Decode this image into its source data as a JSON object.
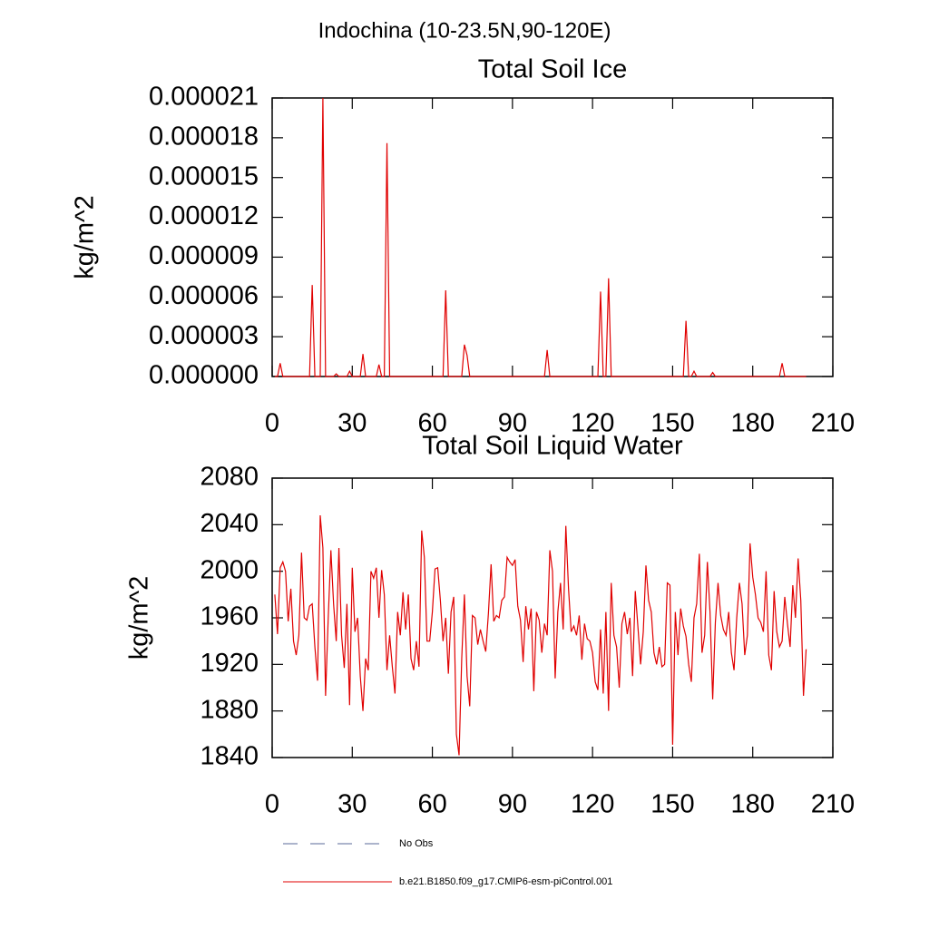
{
  "title": "Indochina (10-23.5N,90-120E)",
  "legend": [
    {
      "name": "No Obs",
      "color": "#5a6a9a",
      "dash": true
    }
  ],
  "chart_data": [
    {
      "type": "line",
      "title": "Total Soil Ice",
      "ylabel": "kg/m^2",
      "xlim": [
        0,
        210
      ],
      "xticks": [
        0,
        30,
        60,
        90,
        120,
        150,
        180,
        210
      ],
      "ylim": [
        0,
        2.1e-05
      ],
      "yticks": [
        {
          "value": 0,
          "label": "0.000000"
        },
        {
          "value": 3e-06,
          "label": "0.000003"
        },
        {
          "value": 6e-06,
          "label": "0.000006"
        },
        {
          "value": 9e-06,
          "label": "0.000009"
        },
        {
          "value": 1.2e-05,
          "label": "0.000012"
        },
        {
          "value": 1.5e-05,
          "label": "0.000015"
        },
        {
          "value": 1.8e-05,
          "label": "0.000018"
        },
        {
          "value": 2.1e-05,
          "label": "0.000021"
        }
      ],
      "x": [
        1,
        2,
        3,
        4,
        5,
        6,
        7,
        8,
        9,
        10,
        11,
        12,
        13,
        14,
        15,
        16,
        17,
        18,
        19,
        20,
        21,
        22,
        23,
        24,
        25,
        26,
        27,
        28,
        29,
        30,
        31,
        32,
        33,
        34,
        35,
        36,
        37,
        38,
        39,
        40,
        41,
        42,
        43,
        44,
        45,
        46,
        47,
        48,
        49,
        50,
        51,
        52,
        53,
        54,
        55,
        56,
        57,
        58,
        59,
        60,
        61,
        62,
        63,
        64,
        65,
        66,
        67,
        68,
        69,
        70,
        71,
        72,
        73,
        74,
        75,
        76,
        77,
        78,
        79,
        80,
        81,
        82,
        83,
        84,
        85,
        86,
        87,
        88,
        89,
        90,
        91,
        92,
        93,
        94,
        95,
        96,
        97,
        98,
        99,
        100,
        101,
        102,
        103,
        104,
        105,
        106,
        107,
        108,
        109,
        110,
        111,
        112,
        113,
        114,
        115,
        116,
        117,
        118,
        119,
        120,
        121,
        122,
        123,
        124,
        125,
        126,
        127,
        128,
        129,
        130,
        131,
        132,
        133,
        134,
        135,
        136,
        137,
        138,
        139,
        140,
        141,
        142,
        143,
        144,
        145,
        146,
        147,
        148,
        149,
        150,
        151,
        152,
        153,
        154,
        155,
        156,
        157,
        158,
        159,
        160,
        161,
        162,
        163,
        164,
        165,
        166,
        167,
        168,
        169,
        170,
        171,
        172,
        173,
        174,
        175,
        176,
        177,
        178,
        179,
        180,
        181,
        182,
        183,
        184,
        185,
        186,
        187,
        188,
        189,
        190,
        191,
        192,
        193,
        194,
        195,
        196,
        197,
        198,
        199,
        200
      ],
      "series": [
        {
          "name": "b.e21.B1850.f09_g17.CMIP6-esm-piControl.001",
          "color": "#e00000",
          "values": [
            0,
            0,
            1e-06,
            0,
            0,
            0,
            0,
            0,
            0,
            0,
            0,
            0,
            0,
            0,
            6.9e-06,
            0,
            0,
            0,
            2.1e-05,
            0,
            0,
            0,
            0,
            2e-07,
            0,
            0,
            0,
            0,
            4e-07,
            0,
            0,
            0,
            0,
            1.7e-06,
            0,
            0,
            0,
            0,
            0,
            9e-07,
            0,
            0,
            1.76e-05,
            0,
            0,
            0,
            0,
            0,
            0,
            0,
            0,
            0,
            0,
            0,
            0,
            0,
            0,
            0,
            0,
            0,
            0,
            0,
            0,
            0,
            6.5e-06,
            0,
            0,
            0,
            0,
            0,
            0,
            2.4e-06,
            1.6e-06,
            0,
            0,
            0,
            0,
            0,
            0,
            0,
            0,
            0,
            0,
            0,
            0,
            0,
            0,
            0,
            0,
            0,
            0,
            0,
            0,
            0,
            0,
            0,
            0,
            0,
            0,
            0,
            0,
            0,
            2e-06,
            0,
            0,
            0,
            0,
            0,
            0,
            0,
            0,
            0,
            0,
            0,
            0,
            0,
            0,
            0,
            0,
            0,
            0,
            0,
            6.4e-06,
            0,
            0,
            7.4e-06,
            0,
            0,
            0,
            0,
            0,
            0,
            0,
            0,
            0,
            0,
            0,
            0,
            0,
            0,
            0,
            0,
            0,
            0,
            0,
            0,
            0,
            0,
            0,
            0,
            0,
            0,
            0,
            0,
            4.2e-06,
            0,
            0,
            4e-07,
            0,
            0,
            0,
            0,
            0,
            0,
            3e-07,
            0,
            0,
            0,
            0,
            0,
            0,
            0,
            0,
            0,
            0,
            0,
            0,
            0,
            0,
            0,
            0,
            0,
            0,
            0,
            0,
            0,
            0,
            0,
            0,
            0,
            1e-06,
            0,
            0,
            0,
            0,
            0,
            0,
            0,
            0,
            0
          ]
        }
      ]
    },
    {
      "type": "line",
      "title": "Total Soil Liquid Water",
      "ylabel": "kg/m^2",
      "xlim": [
        0,
        210
      ],
      "xticks": [
        0,
        30,
        60,
        90,
        120,
        150,
        180,
        210
      ],
      "ylim": [
        1840,
        2080
      ],
      "yticks": [
        1840,
        1880,
        1920,
        1960,
        2000,
        2040,
        2080
      ],
      "x": [
        1,
        2,
        3,
        4,
        5,
        6,
        7,
        8,
        9,
        10,
        11,
        12,
        13,
        14,
        15,
        16,
        17,
        18,
        19,
        20,
        21,
        22,
        23,
        24,
        25,
        26,
        27,
        28,
        29,
        30,
        31,
        32,
        33,
        34,
        35,
        36,
        37,
        38,
        39,
        40,
        41,
        42,
        43,
        44,
        45,
        46,
        47,
        48,
        49,
        50,
        51,
        52,
        53,
        54,
        55,
        56,
        57,
        58,
        59,
        60,
        61,
        62,
        63,
        64,
        65,
        66,
        67,
        68,
        69,
        70,
        71,
        72,
        73,
        74,
        75,
        76,
        77,
        78,
        79,
        80,
        81,
        82,
        83,
        84,
        85,
        86,
        87,
        88,
        89,
        90,
        91,
        92,
        93,
        94,
        95,
        96,
        97,
        98,
        99,
        100,
        101,
        102,
        103,
        104,
        105,
        106,
        107,
        108,
        109,
        110,
        111,
        112,
        113,
        114,
        115,
        116,
        117,
        118,
        119,
        120,
        121,
        122,
        123,
        124,
        125,
        126,
        127,
        128,
        129,
        130,
        131,
        132,
        133,
        134,
        135,
        136,
        137,
        138,
        139,
        140,
        141,
        142,
        143,
        144,
        145,
        146,
        147,
        148,
        149,
        150,
        151,
        152,
        153,
        154,
        155,
        156,
        157,
        158,
        159,
        160,
        161,
        162,
        163,
        164,
        165,
        166,
        167,
        168,
        169,
        170,
        171,
        172,
        173,
        174,
        175,
        176,
        177,
        178,
        179,
        180,
        181,
        182,
        183,
        184,
        185,
        186,
        187,
        188,
        189,
        190,
        191,
        192,
        193,
        194,
        195,
        196,
        197,
        198,
        199,
        200
      ],
      "series": [
        {
          "name": "b.e21.B1850.f09_g17.CMIP6-esm-piControl.001",
          "color": "#e00000",
          "values": [
            1980,
            1946,
            2003,
            2008,
            2000,
            1957,
            1985,
            1940,
            1928,
            1945,
            2016,
            1960,
            1958,
            1970,
            1972,
            1935,
            1906,
            2048,
            2020,
            1893,
            1960,
            2018,
            1972,
            1940,
            2020,
            1945,
            1917,
            1972,
            1885,
            2003,
            1948,
            1960,
            1910,
            1880,
            1925,
            1915,
            2000,
            1994,
            2003,
            1960,
            2001,
            1980,
            1915,
            1945,
            1918,
            1895,
            1965,
            1945,
            1982,
            1950,
            1980,
            1925,
            1915,
            1940,
            1918,
            2035,
            2012,
            1940,
            1940,
            1965,
            2002,
            2003,
            1975,
            1940,
            1960,
            1912,
            1965,
            1978,
            1860,
            1842,
            1925,
            1980,
            1910,
            1884,
            1962,
            1960,
            1937,
            1950,
            1940,
            1931,
            1964,
            2006,
            1957,
            1962,
            1960,
            1975,
            1978,
            2012,
            2008,
            2005,
            2010,
            1970,
            1958,
            1922,
            1970,
            1950,
            1968,
            1897,
            1965,
            1958,
            1930,
            1955,
            1945,
            2018,
            2000,
            1908,
            1965,
            1990,
            1950,
            2039,
            1985,
            1948,
            1953,
            1945,
            1962,
            1924,
            1955,
            1942,
            1940,
            1930,
            1905,
            1898,
            1950,
            1895,
            1965,
            1880,
            1990,
            1945,
            1935,
            1900,
            1955,
            1965,
            1946,
            1960,
            1910,
            1983,
            1952,
            1920,
            1948,
            2005,
            1975,
            1965,
            1930,
            1920,
            1935,
            1918,
            1920,
            1990,
            1988,
            1851,
            1965,
            1928,
            1968,
            1953,
            1944,
            1920,
            1905,
            1960,
            1972,
            2015,
            1930,
            1945,
            2008,
            1965,
            1890,
            1956,
            1990,
            1962,
            1950,
            1945,
            1965,
            1930,
            1915,
            1960,
            1990,
            1972,
            1928,
            1945,
            2024,
            1995,
            1980,
            1960,
            1956,
            1948,
            2000,
            1928,
            1915,
            1983,
            1948,
            1935,
            1940,
            1978,
            1955,
            1935,
            1988,
            1960,
            2011,
            1975,
            1893,
            1933
          ]
        }
      ]
    }
  ]
}
